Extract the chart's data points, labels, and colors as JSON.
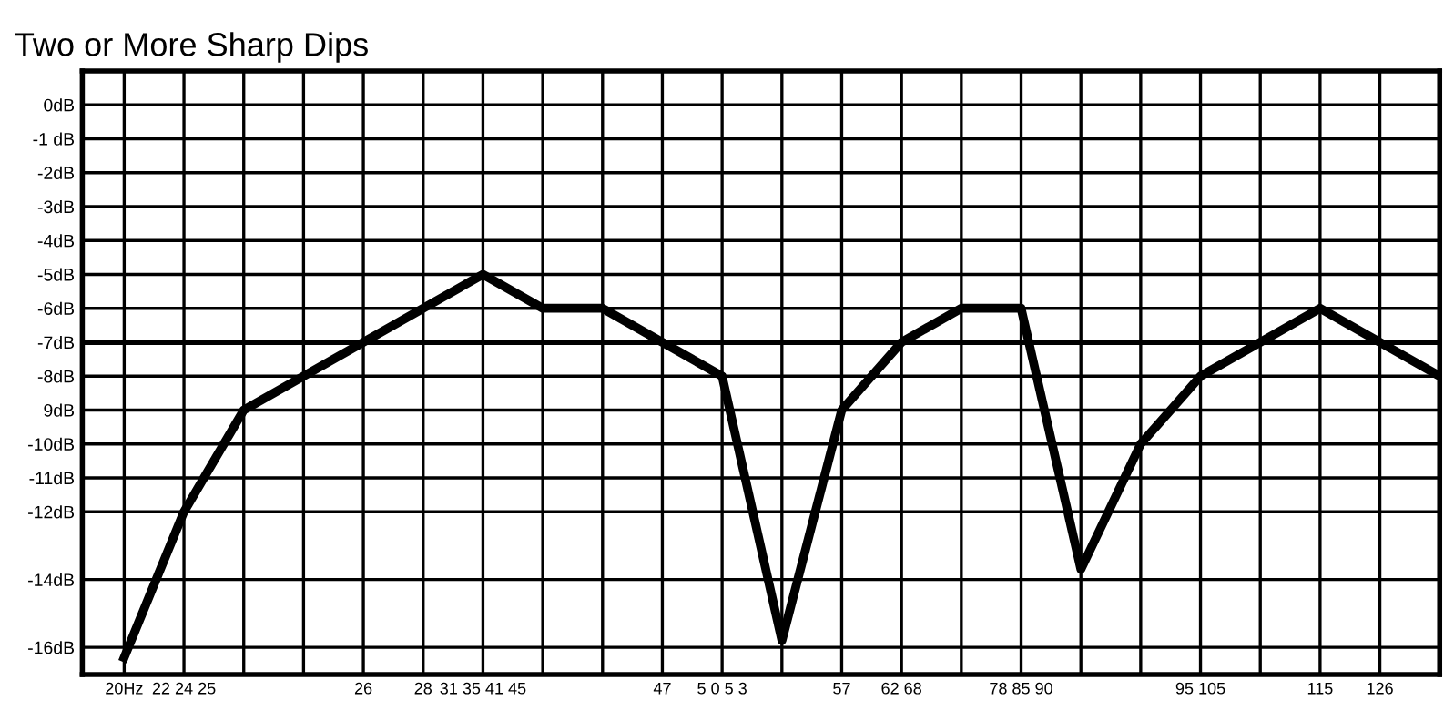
{
  "chart_data": {
    "type": "line",
    "title": "Two or More Sharp Dips",
    "categories": [
      "20Hz",
      "22 24 25",
      null,
      null,
      "26",
      "28",
      "31 35 41 45",
      null,
      null,
      "47",
      "5 0 5 3",
      null,
      "57",
      "62 68",
      null,
      "78 85 90",
      null,
      null,
      "95 105",
      null,
      "115",
      "126",
      null
    ],
    "series": [
      {
        "color": "#000000",
        "values": [
          -16.3,
          -12,
          -9,
          -8,
          -7,
          -6,
          -5,
          -6,
          -6,
          -7,
          -8,
          -15.8,
          -9,
          -7,
          -6,
          -6,
          -13.7,
          -10,
          -8,
          -7,
          -6,
          -7,
          -8
        ]
      }
    ],
    "ylim": [
      -16.8,
      1
    ],
    "yticks": [
      {
        "value": 0,
        "label": "0dB"
      },
      {
        "value": -1,
        "label": "-1 dB"
      },
      {
        "value": -2,
        "label": "-2dB"
      },
      {
        "value": -3,
        "label": "-3dB"
      },
      {
        "value": -4,
        "label": "-4dB"
      },
      {
        "value": -5,
        "label": "-5dB"
      },
      {
        "value": -6,
        "label": "-6dB"
      },
      {
        "value": -7,
        "label": "-7dB"
      },
      {
        "value": -8,
        "label": "-8dB"
      },
      {
        "value": -9,
        "label": "9dB"
      },
      {
        "value": -10,
        "label": "-10dB"
      },
      {
        "value": -11,
        "label": "-11dB"
      },
      {
        "value": -12,
        "label": "-12dB"
      },
      {
        "value": -14,
        "label": "-14dB"
      },
      {
        "value": -16,
        "label": "-16dB"
      }
    ],
    "ref_lines": [
      {
        "axis": "y",
        "value": -7,
        "color": "#000000"
      }
    ],
    "grid": true,
    "marker": "none",
    "line_style": "solid",
    "legend": false
  }
}
